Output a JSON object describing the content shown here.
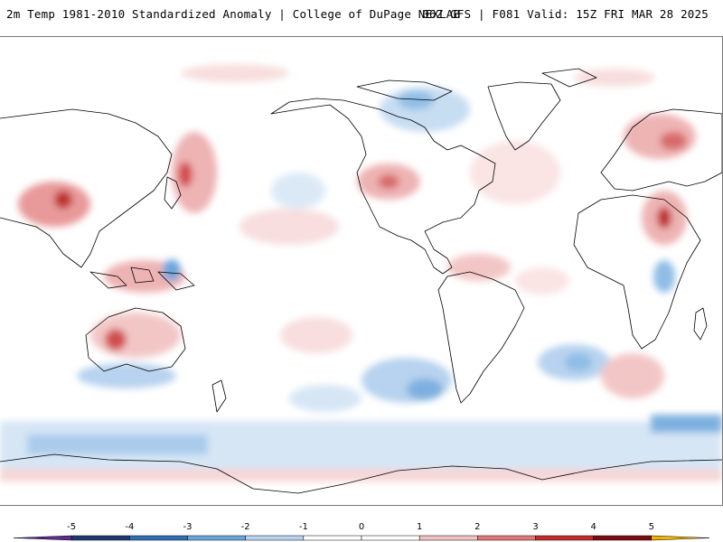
{
  "header": {
    "title": "2m Temp 1981-2010 Standardized Anomaly | College of DuPage NEXLAB",
    "run_info": "06Z GFS | F081 Valid: 15Z FRI MAR 28 2025"
  },
  "map": {
    "projection": "global equirectangular",
    "variable": "2m temperature standardized anomaly"
  },
  "colorbar": {
    "ticks": [
      {
        "label": "-5"
      },
      {
        "label": "-4"
      },
      {
        "label": "-3"
      },
      {
        "label": "-2"
      },
      {
        "label": "-1"
      },
      {
        "label": "0"
      },
      {
        "label": "1"
      },
      {
        "label": "2"
      },
      {
        "label": "3"
      },
      {
        "label": "4"
      },
      {
        "label": "5"
      }
    ],
    "colors": [
      "#5b2e8f",
      "#1f3a6e",
      "#2f6fb3",
      "#6aa6dc",
      "#b7d3ef",
      "#ffffff",
      "#ffffff",
      "#f3c1c1",
      "#e27878",
      "#c32a2a",
      "#7d0b12",
      "#f2b400"
    ]
  }
}
